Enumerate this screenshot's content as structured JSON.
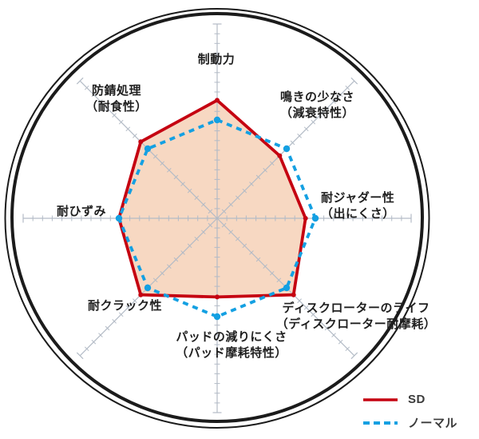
{
  "chart_data": {
    "type": "radar",
    "title": "",
    "background_shape": "brake-disc-rotor-circle",
    "grid": "radial-axes-with-ruler-ticks",
    "legend_position": "bottom-right",
    "scale": {
      "min": 0,
      "tick_interval": 1,
      "ticks_per_axis": 20,
      "normal_baseline": 10
    },
    "axes": [
      {
        "label": "制動力",
        "sublabel": ""
      },
      {
        "label": "鳴きの少なさ",
        "sublabel": "（減衰特性）"
      },
      {
        "label": "耐ジャダー性",
        "sublabel": "（出にくさ）"
      },
      {
        "label": "ディスクローターのライフ",
        "sublabel": "（ディスクローター耐摩耗）"
      },
      {
        "label": "パッドの減りにくさ",
        "sublabel": "（パッド摩耗特性）"
      },
      {
        "label": "耐クラック性",
        "sublabel": ""
      },
      {
        "label": "耐ひずみ",
        "sublabel": ""
      },
      {
        "label": "防錆処理",
        "sublabel": "（耐食性）"
      }
    ],
    "series": [
      {
        "name": "SD",
        "line_style": "solid",
        "color": "#c50211",
        "fill_color": "#f7d8c2",
        "values": [
          12,
          9,
          9,
          11,
          8,
          11,
          10,
          11
        ]
      },
      {
        "name": "ノーマル",
        "line_style": "dashed",
        "color": "#14a0e2",
        "fill_color": "none",
        "values": [
          10,
          10,
          10,
          10,
          10,
          10,
          10,
          10
        ]
      }
    ]
  },
  "legend": {
    "items": [
      {
        "label": "SD",
        "swatch": "solid-red-line"
      },
      {
        "label": "ノーマル",
        "swatch": "dashed-blue-line"
      }
    ]
  },
  "colors": {
    "sd_red": "#c50211",
    "normal_blue": "#14a0e2",
    "polygon_fill": "#f7d8c2",
    "axis_gray": "#b3bbc6",
    "rotor_ring": "#1b1b1b",
    "label_text": "#1f1f1f",
    "legend_text": "#3b3b3b",
    "background": "#ffffff"
  }
}
